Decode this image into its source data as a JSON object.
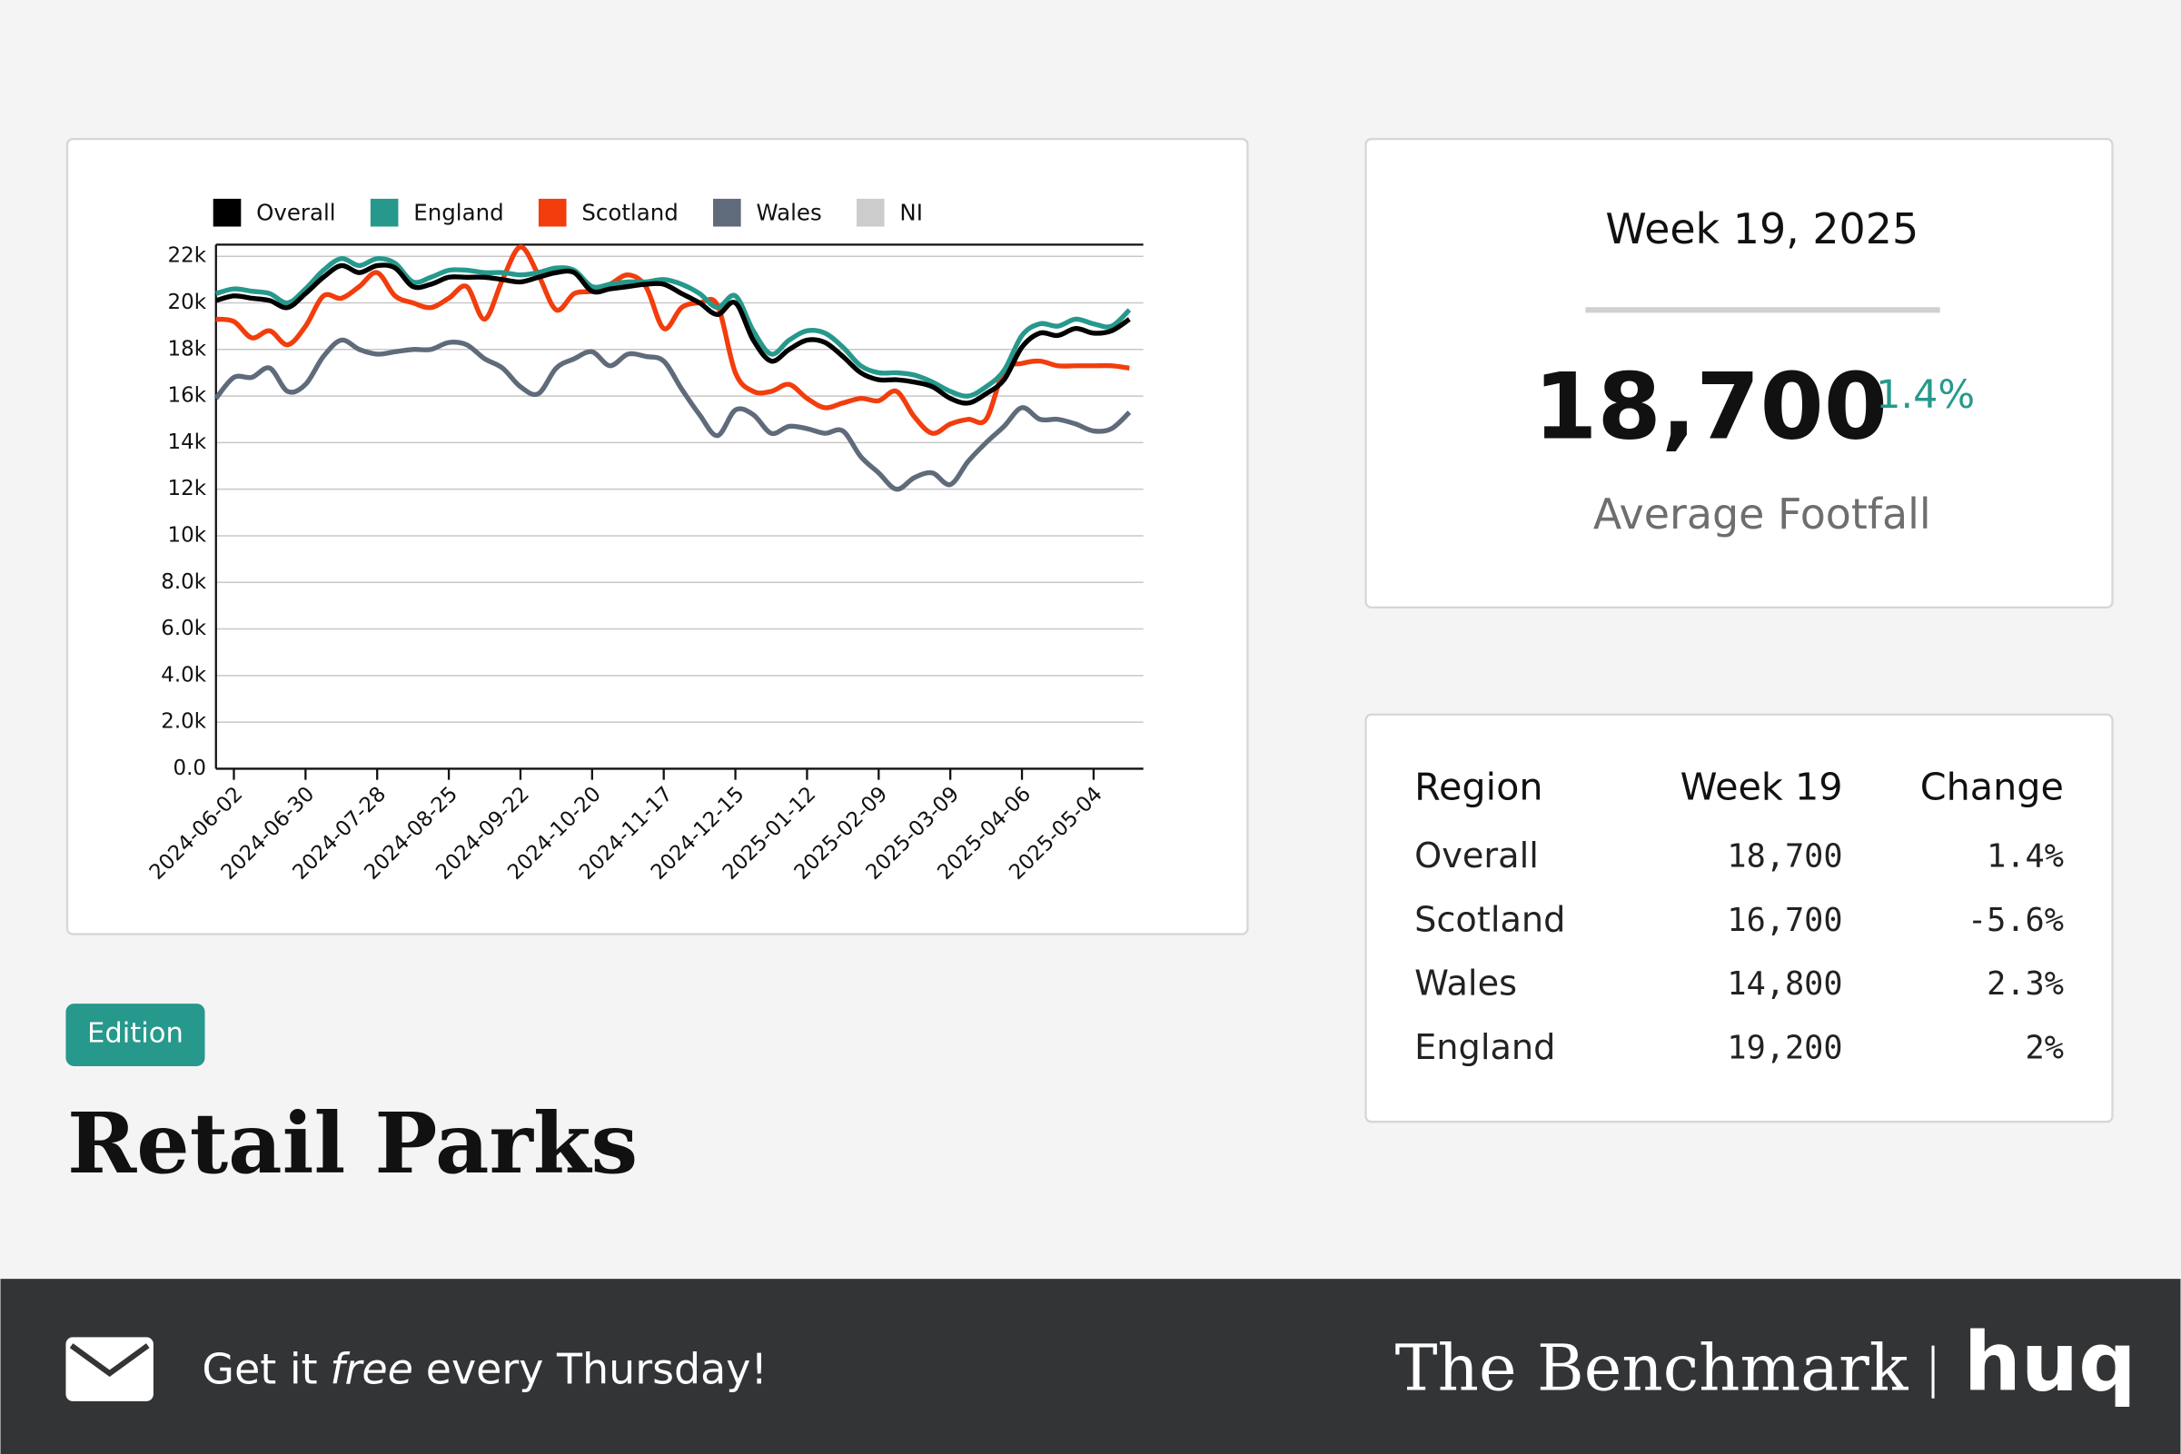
{
  "chart_data": {
    "type": "line",
    "categories": [
      null,
      "2024-06-02",
      null,
      null,
      null,
      "2024-06-30",
      null,
      null,
      null,
      "2024-07-28",
      null,
      null,
      null,
      "2024-08-25",
      null,
      null,
      null,
      "2024-09-22",
      null,
      null,
      null,
      "2024-10-20",
      null,
      null,
      null,
      "2024-11-17",
      null,
      null,
      null,
      "2024-12-15",
      null,
      null,
      null,
      "2025-01-12",
      null,
      null,
      null,
      "2025-02-09",
      null,
      null,
      null,
      "2025-03-09",
      null,
      null,
      null,
      "2025-04-06",
      null,
      null,
      null,
      "2025-05-04",
      null,
      null
    ],
    "series": [
      {
        "name": "Overall",
        "color": "#000000",
        "values": [
          20100,
          20300,
          20200,
          20100,
          19800,
          20400,
          21100,
          21600,
          21300,
          21600,
          21500,
          20700,
          20800,
          21100,
          21100,
          21100,
          21000,
          20900,
          21100,
          21300,
          21300,
          20500,
          20600,
          20700,
          20800,
          20800,
          20400,
          20000,
          19500,
          20000,
          18400,
          17500,
          18000,
          18400,
          18300,
          17700,
          17000,
          16700,
          16700,
          16600,
          16400,
          15900,
          15700,
          16100,
          16700,
          18100,
          18700,
          18600,
          18900,
          18700,
          18800,
          19300
        ]
      },
      {
        "name": "England",
        "color": "#26998c",
        "values": [
          20400,
          20600,
          20500,
          20400,
          20000,
          20600,
          21400,
          21900,
          21600,
          21900,
          21700,
          20900,
          21100,
          21400,
          21400,
          21300,
          21300,
          21200,
          21300,
          21500,
          21400,
          20700,
          20800,
          20900,
          20900,
          21000,
          20800,
          20400,
          19800,
          20300,
          18800,
          17800,
          18400,
          18800,
          18700,
          18100,
          17300,
          17000,
          17000,
          16900,
          16600,
          16200,
          16000,
          16400,
          17100,
          18600,
          19100,
          19000,
          19300,
          19100,
          19000,
          19700
        ]
      },
      {
        "name": "Scotland",
        "color": "#f23d0d",
        "values": [
          19300,
          19200,
          18500,
          18800,
          18200,
          19000,
          20300,
          20200,
          20700,
          21300,
          20300,
          20000,
          19800,
          20200,
          20700,
          19300,
          21000,
          22400,
          21200,
          19700,
          20400,
          20500,
          20800,
          21200,
          20700,
          18900,
          19800,
          20000,
          19900,
          17000,
          16200,
          16200,
          16500,
          15900,
          15500,
          15700,
          15900,
          15800,
          16200,
          15100,
          14400,
          14800,
          15000,
          15000,
          17100,
          17400,
          17500,
          17300,
          17300,
          17300,
          17300,
          17200
        ]
      },
      {
        "name": "Wales",
        "color": "#5f6b7a",
        "values": [
          15900,
          16800,
          16800,
          17200,
          16200,
          16500,
          17700,
          18400,
          18000,
          17800,
          17900,
          18000,
          18000,
          18300,
          18200,
          17600,
          17200,
          16400,
          16100,
          17200,
          17600,
          17900,
          17300,
          17800,
          17700,
          17500,
          16300,
          15200,
          14300,
          15400,
          15200,
          14400,
          14700,
          14600,
          14400,
          14500,
          13400,
          12700,
          12000,
          12500,
          12700,
          12200,
          13200,
          14000,
          14700,
          15500,
          15000,
          15000,
          14800,
          14500,
          14600,
          15300
        ]
      },
      {
        "name": "NI",
        "color": "#cccccc",
        "values": [
          null,
          null,
          null,
          null,
          null,
          null,
          null,
          null,
          null,
          null,
          null,
          null,
          null,
          null,
          null,
          null,
          null,
          null,
          null,
          null,
          null,
          null,
          null,
          null,
          null,
          null,
          null,
          null,
          null,
          null,
          null,
          null,
          null,
          null,
          null,
          null,
          null,
          null,
          null,
          null,
          null,
          null,
          null,
          null,
          null,
          null,
          null,
          null,
          null,
          null,
          null,
          null
        ]
      }
    ],
    "ylim": [
      0,
      22500
    ],
    "yticks": [
      {
        "value": 0,
        "label": "0.0"
      },
      {
        "value": 2000,
        "label": "2.0k"
      },
      {
        "value": 4000,
        "label": "4.0k"
      },
      {
        "value": 6000,
        "label": "6.0k"
      },
      {
        "value": 8000,
        "label": "8.0k"
      },
      {
        "value": 10000,
        "label": "10k"
      },
      {
        "value": 12000,
        "label": "12k"
      },
      {
        "value": 14000,
        "label": "14k"
      },
      {
        "value": 16000,
        "label": "16k"
      },
      {
        "value": 18000,
        "label": "18k"
      },
      {
        "value": 20000,
        "label": "20k"
      },
      {
        "value": 22000,
        "label": "22k"
      }
    ],
    "grid": true,
    "legend": "top"
  },
  "summary": {
    "title": "Week 19, 2025",
    "value": "18,700",
    "change": "1.4%",
    "label": "Average Footfall"
  },
  "table": {
    "header": [
      "Region",
      "Week 19",
      "Change"
    ],
    "rows": [
      [
        "Overall",
        "18,700",
        "1.4%"
      ],
      [
        "Scotland",
        "16,700",
        "-5.6%"
      ],
      [
        "Wales",
        "14,800",
        "2.3%"
      ],
      [
        "England",
        "19,200",
        "2%"
      ]
    ]
  },
  "edition": "Edition",
  "headline": "Retail Parks",
  "footer": {
    "cta": [
      "Get it",
      "free",
      "every Thursday!"
    ],
    "brand": "The Benchmark",
    "logo": "huq"
  }
}
